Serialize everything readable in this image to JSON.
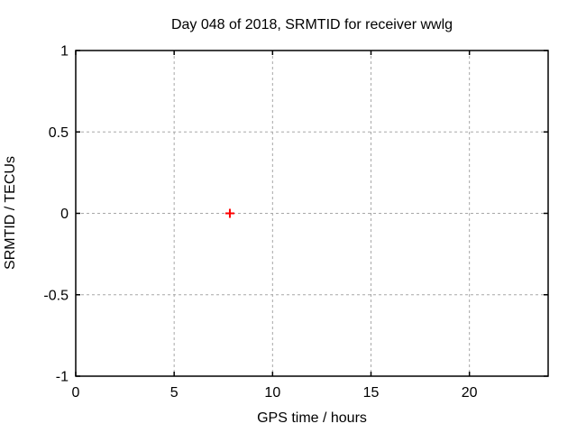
{
  "chart_data": {
    "type": "scatter",
    "title": "Day 048 of 2018, SRMTID for receiver wwlg",
    "xlabel": "GPS time / hours",
    "ylabel": "SRMTID / TECUs",
    "xlim": [
      0,
      24
    ],
    "ylim": [
      -1,
      1
    ],
    "xticks": [
      0,
      5,
      10,
      15,
      20
    ],
    "yticks": [
      -1,
      -0.5,
      0,
      0.5,
      1
    ],
    "grid": true,
    "legend": "none",
    "series": [
      {
        "name": "SRMTID",
        "marker": "plus",
        "color": "#ff0000",
        "points": [
          {
            "x": 7.83,
            "y": 0.0
          }
        ]
      }
    ],
    "colors": {
      "background": "#ffffff",
      "border": "#000000",
      "grid": "#a8a8a8",
      "text": "#000000",
      "point": "#ff0000"
    }
  }
}
